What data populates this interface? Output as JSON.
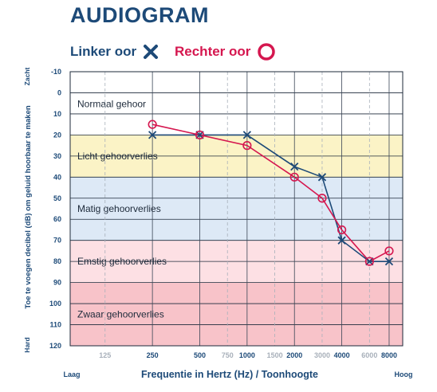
{
  "chart_data": {
    "type": "line",
    "title": "AUDIOGRAM",
    "xlabel": "Frequentie in Hertz (Hz) / Toonhoogte",
    "ylabel": "Toe te voegen decibel (dB) om geluid hoorbaar te maken",
    "x_low_label": "Laag",
    "x_high_label": "Hoog",
    "y_top_label": "Zacht",
    "y_bottom_label": "Hard",
    "x_ticks": [
      {
        "label": "125",
        "freq": 125,
        "major": false
      },
      {
        "label": "250",
        "freq": 250,
        "major": true
      },
      {
        "label": "500",
        "freq": 500,
        "major": true
      },
      {
        "label": "750",
        "freq": 750,
        "major": false
      },
      {
        "label": "1000",
        "freq": 1000,
        "major": true
      },
      {
        "label": "1500",
        "freq": 1500,
        "major": false
      },
      {
        "label": "2000",
        "freq": 2000,
        "major": true
      },
      {
        "label": "3000",
        "freq": 3000,
        "major": false
      },
      {
        "label": "4000",
        "freq": 4000,
        "major": true
      },
      {
        "label": "6000",
        "freq": 6000,
        "major": false
      },
      {
        "label": "8000",
        "freq": 8000,
        "major": true
      }
    ],
    "y_ticks": [
      "-10",
      "0",
      "10",
      "20",
      "30",
      "40",
      "50",
      "60",
      "70",
      "80",
      "90",
      "100",
      "110",
      "120"
    ],
    "ylim": [
      -10,
      120
    ],
    "y_inverted": true,
    "bands": [
      {
        "label": "Normaal gehoor",
        "from": -10,
        "to": 20,
        "color": "#ffffff"
      },
      {
        "label": "Licht gehoorverlies",
        "from": 20,
        "to": 40,
        "color": "#fbf3c6"
      },
      {
        "label": "Matig gehoorverlies",
        "from": 40,
        "to": 70,
        "color": "#dde9f6"
      },
      {
        "label": "Emstig gehoorverlies",
        "from": 70,
        "to": 90,
        "color": "#fde0e4"
      },
      {
        "label": "Zwaar gehoorverlies",
        "from": 90,
        "to": 120,
        "color": "#f8c3c9"
      }
    ],
    "series": [
      {
        "name": "Linker oor",
        "marker": "x",
        "color": "#1d4a78",
        "points": [
          [
            250,
            20
          ],
          [
            500,
            20
          ],
          [
            1000,
            20
          ],
          [
            2000,
            35
          ],
          [
            3000,
            40
          ],
          [
            4000,
            70
          ],
          [
            6000,
            80
          ],
          [
            8000,
            80
          ]
        ]
      },
      {
        "name": "Rechter oor",
        "marker": "o",
        "color": "#d5174f",
        "points": [
          [
            250,
            15
          ],
          [
            500,
            20
          ],
          [
            1000,
            25
          ],
          [
            2000,
            40
          ],
          [
            3000,
            50
          ],
          [
            4000,
            65
          ],
          [
            6000,
            80
          ],
          [
            8000,
            75
          ]
        ]
      }
    ]
  }
}
